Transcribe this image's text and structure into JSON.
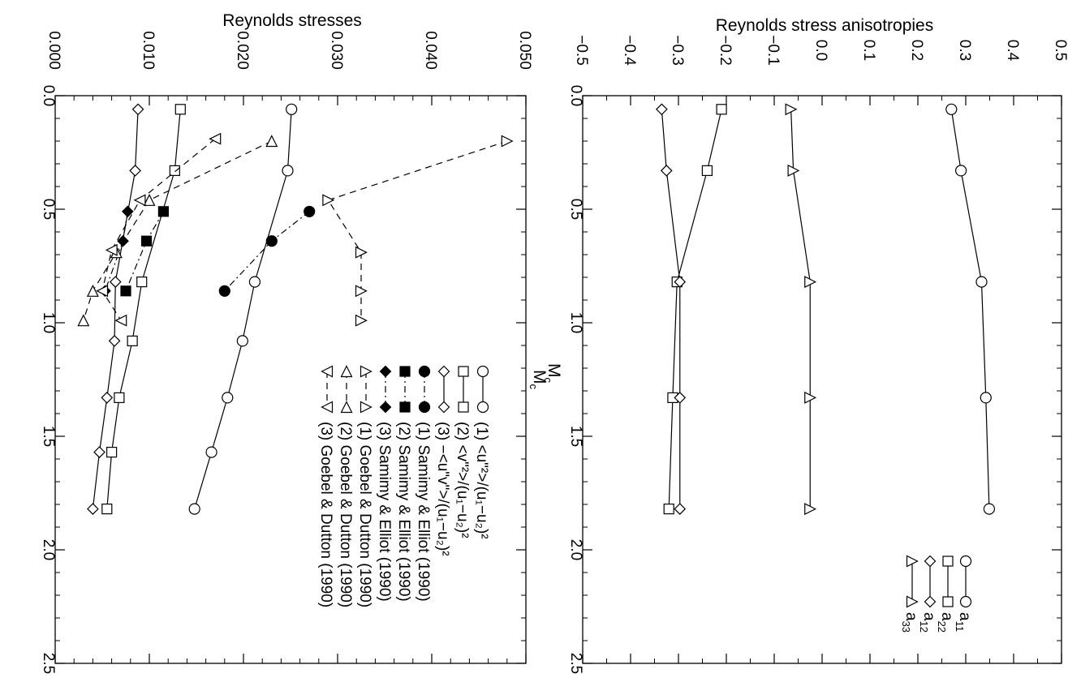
{
  "chart_data": [
    {
      "type": "line",
      "title": "Reynolds stresses",
      "xlabel": "M",
      "xlabel_sub": "c",
      "ylabel": "",
      "xlim": [
        0.0,
        2.5
      ],
      "ylim": [
        0.0,
        0.05
      ],
      "x_ticks": [
        "0.0",
        "0.5",
        "1.0",
        "1.5",
        "2.0",
        "2.5"
      ],
      "y_ticks": [
        "0.000",
        "0.010",
        "0.020",
        "0.030",
        "0.040",
        "0.050"
      ],
      "series": [
        {
          "name": "(1) <u\"²>/(u₁−u₂)²",
          "marker": "circle-open",
          "line": "solid",
          "x": [
            0.06,
            0.33,
            0.82,
            1.08,
            1.33,
            1.57,
            1.82
          ],
          "y": [
            0.0251,
            0.0247,
            0.0212,
            0.0199,
            0.0183,
            0.0166,
            0.0148
          ]
        },
        {
          "name": "(2) <v\"²>/(u₁−u₂)²",
          "marker": "square-open",
          "line": "solid",
          "x": [
            0.06,
            0.33,
            0.82,
            1.08,
            1.33,
            1.57,
            1.82
          ],
          "y": [
            0.0133,
            0.0127,
            0.0092,
            0.0082,
            0.0068,
            0.006,
            0.0055
          ]
        },
        {
          "name": "(3) −<u\"v\">/(u₁−u₂)²",
          "marker": "diamond-open",
          "line": "solid",
          "x": [
            0.06,
            0.33,
            0.82,
            1.08,
            1.33,
            1.57,
            1.82
          ],
          "y": [
            0.0088,
            0.0085,
            0.0064,
            0.0063,
            0.0055,
            0.0047,
            0.004
          ]
        },
        {
          "name": "(1) Samimy & Elliot (1990)",
          "marker": "circle-filled",
          "line": "dashdot",
          "x": [
            0.51,
            0.64,
            0.86
          ],
          "y": [
            0.027,
            0.023,
            0.018
          ]
        },
        {
          "name": "(2) Samimy & Elliot (1990)",
          "marker": "square-filled",
          "line": "dashdot",
          "x": [
            0.51,
            0.64,
            0.86
          ],
          "y": [
            0.0115,
            0.0097,
            0.0075
          ]
        },
        {
          "name": "(3) Samimy & Elliot (1990)",
          "marker": "diamond-filled",
          "line": "dashdot",
          "x": [
            0.51,
            0.64,
            0.86
          ],
          "y": [
            0.0077,
            0.0072,
            0.0053
          ]
        },
        {
          "name": "(1) Goebel & Dutton (1990)",
          "marker": "triangle-right-open",
          "line": "dashed",
          "x": [
            0.2,
            0.46,
            0.69,
            0.86,
            0.99
          ],
          "y": [
            0.048,
            0.029,
            0.0325,
            0.0325,
            0.0325
          ]
        },
        {
          "name": "(2) Goebel & Dutton (1990)",
          "marker": "triangle-up-open",
          "line": "dashed",
          "x": [
            0.2,
            0.46,
            0.69,
            0.86,
            0.99
          ],
          "y": [
            0.023,
            0.01,
            0.0065,
            0.004,
            0.003
          ]
        },
        {
          "name": "(3) Goebel & Dutton (1990)",
          "marker": "triangle-left-open",
          "line": "dashed",
          "x": [
            0.19,
            0.46,
            0.68,
            0.86,
            0.99
          ],
          "y": [
            0.017,
            0.009,
            0.006,
            0.005,
            0.007
          ]
        }
      ]
    },
    {
      "type": "line",
      "title": "Reynolds stress anisotropies",
      "xlabel": "M",
      "xlabel_sub": "c",
      "ylabel": "",
      "xlim": [
        0.0,
        2.5
      ],
      "ylim": [
        -0.5,
        0.5
      ],
      "x_ticks": [
        "0.0",
        "0.5",
        "1.0",
        "1.5",
        "2.0",
        "2.5"
      ],
      "y_ticks": [
        "−0.5",
        "−0.4",
        "−0.3",
        "−0.2",
        "−0.1",
        "0.0",
        "0.1",
        "0.2",
        "0.3",
        "0.4",
        "0.5"
      ],
      "series": [
        {
          "name": "a",
          "name_sub": "11",
          "marker": "circle-open",
          "line": "solid",
          "x": [
            0.06,
            0.33,
            0.82,
            1.33,
            1.82
          ],
          "y": [
            0.27,
            0.29,
            0.333,
            0.342,
            0.349
          ]
        },
        {
          "name": "a",
          "name_sub": "22",
          "marker": "square-open",
          "line": "solid",
          "x": [
            0.06,
            0.33,
            0.82,
            1.33,
            1.82
          ],
          "y": [
            -0.21,
            -0.24,
            -0.303,
            -0.312,
            -0.32
          ]
        },
        {
          "name": "a",
          "name_sub": "12",
          "marker": "diamond-open",
          "line": "solid",
          "x": [
            0.06,
            0.33,
            0.82,
            1.33,
            1.82
          ],
          "y": [
            -0.335,
            -0.325,
            -0.297,
            -0.297,
            -0.297
          ]
        },
        {
          "name": "a",
          "name_sub": "33",
          "marker": "triangle-right-open",
          "line": "solid",
          "x": [
            0.06,
            0.33,
            0.82,
            1.33,
            1.82
          ],
          "y": [
            -0.065,
            -0.06,
            -0.025,
            -0.025,
            -0.025
          ]
        }
      ]
    }
  ]
}
